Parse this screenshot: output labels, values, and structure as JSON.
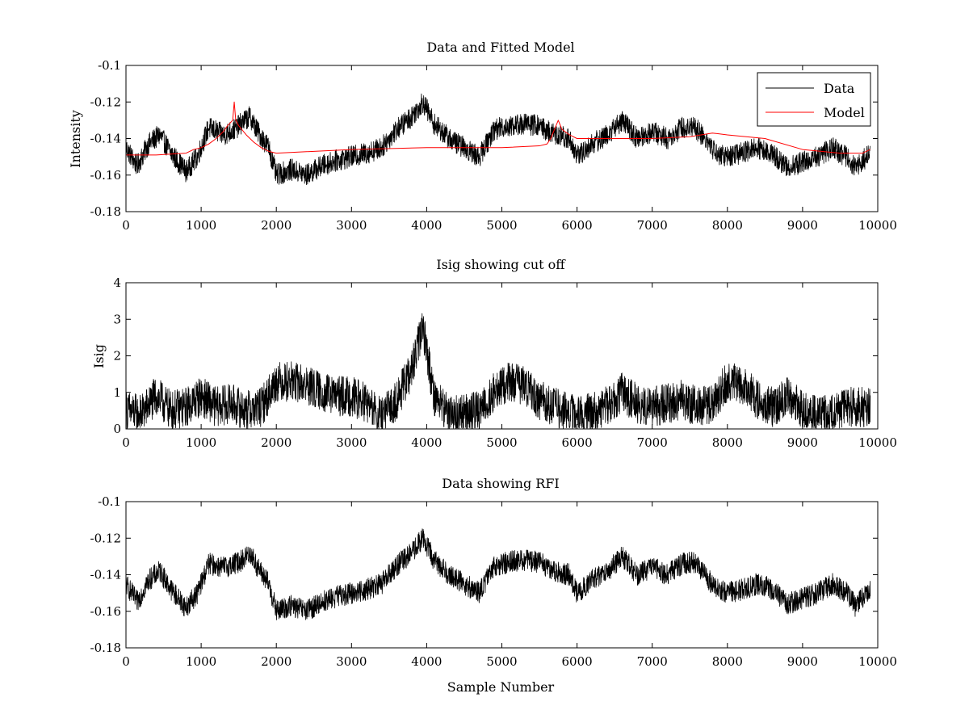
{
  "chart_data": [
    {
      "type": "line",
      "title": "Data and Fitted Model",
      "xlabel": "",
      "ylabel": "Intensity",
      "xlim": [
        0,
        10000
      ],
      "ylim": [
        -0.18,
        -0.1
      ],
      "xticks": [
        "0",
        "1000",
        "2000",
        "3000",
        "4000",
        "5000",
        "6000",
        "7000",
        "8000",
        "9000",
        "10000"
      ],
      "yticks": [
        "-0.18",
        "-0.16",
        "-0.14",
        "-0.12",
        "-0.1"
      ],
      "grid": false,
      "legend": {
        "placement": "top-right",
        "entries": [
          "Data",
          "Model"
        ]
      },
      "noise_amp": 0.006,
      "series": [
        {
          "name": "Data",
          "color": "#000000",
          "noisy": true,
          "x": [
            0,
            150,
            300,
            450,
            600,
            800,
            950,
            1100,
            1300,
            1450,
            1550,
            1650,
            1750,
            1900,
            2000,
            2200,
            2400,
            2600,
            2800,
            3000,
            3200,
            3400,
            3600,
            3800,
            3950,
            4100,
            4300,
            4500,
            4700,
            4900,
            5100,
            5300,
            5500,
            5700,
            5900,
            6000,
            6200,
            6400,
            6600,
            6800,
            7000,
            7200,
            7400,
            7550,
            7700,
            7850,
            8000,
            8200,
            8400,
            8600,
            8800,
            9000,
            9200,
            9400,
            9500,
            9600,
            9700,
            9800,
            9900
          ],
          "y": [
            -0.145,
            -0.155,
            -0.143,
            -0.138,
            -0.148,
            -0.158,
            -0.15,
            -0.134,
            -0.138,
            -0.135,
            -0.131,
            -0.128,
            -0.136,
            -0.145,
            -0.16,
            -0.157,
            -0.16,
            -0.155,
            -0.152,
            -0.15,
            -0.148,
            -0.145,
            -0.135,
            -0.128,
            -0.12,
            -0.132,
            -0.14,
            -0.145,
            -0.15,
            -0.135,
            -0.133,
            -0.132,
            -0.133,
            -0.138,
            -0.14,
            -0.15,
            -0.143,
            -0.138,
            -0.13,
            -0.14,
            -0.136,
            -0.14,
            -0.134,
            -0.133,
            -0.14,
            -0.148,
            -0.15,
            -0.148,
            -0.145,
            -0.148,
            -0.156,
            -0.153,
            -0.15,
            -0.145,
            -0.148,
            -0.15,
            -0.157,
            -0.152,
            -0.148
          ]
        },
        {
          "name": "Model",
          "color": "#ff0000",
          "noisy": false,
          "x": [
            0,
            400,
            800,
            900,
            1000,
            1100,
            1200,
            1300,
            1350,
            1420,
            1440,
            1460,
            1500,
            1600,
            1700,
            1800,
            1900,
            2000,
            3000,
            4000,
            5000,
            5500,
            5600,
            5650,
            5700,
            5750,
            5800,
            5900,
            6000,
            6500,
            7000,
            7500,
            7800,
            8000,
            8500,
            9000,
            9500,
            9800,
            9900
          ],
          "y": [
            -0.149,
            -0.149,
            -0.148,
            -0.146,
            -0.145,
            -0.143,
            -0.14,
            -0.136,
            -0.133,
            -0.13,
            -0.12,
            -0.13,
            -0.133,
            -0.138,
            -0.142,
            -0.145,
            -0.147,
            -0.148,
            -0.146,
            -0.145,
            -0.145,
            -0.144,
            -0.143,
            -0.14,
            -0.135,
            -0.13,
            -0.135,
            -0.138,
            -0.14,
            -0.14,
            -0.14,
            -0.139,
            -0.137,
            -0.138,
            -0.14,
            -0.146,
            -0.148,
            -0.148,
            -0.146
          ]
        }
      ]
    },
    {
      "type": "line",
      "title": "Isig showing cut off",
      "xlabel": "",
      "ylabel": "Isig",
      "xlim": [
        0,
        10000
      ],
      "ylim": [
        0,
        4
      ],
      "xticks": [
        "0",
        "1000",
        "2000",
        "3000",
        "4000",
        "5000",
        "6000",
        "7000",
        "8000",
        "9000",
        "10000"
      ],
      "yticks": [
        "0",
        "1",
        "2",
        "3",
        "4"
      ],
      "grid": false,
      "noise_amp": 0.55,
      "clip_min": 0,
      "series": [
        {
          "name": "Isig",
          "color": "#000000",
          "noisy": true,
          "x": [
            0,
            200,
            400,
            600,
            800,
            1000,
            1200,
            1400,
            1600,
            1800,
            2000,
            2200,
            2400,
            2600,
            2800,
            3000,
            3200,
            3400,
            3600,
            3800,
            3950,
            4100,
            4300,
            4500,
            4700,
            4900,
            5100,
            5300,
            5500,
            5700,
            5900,
            6100,
            6300,
            6600,
            6800,
            7000,
            7200,
            7400,
            7600,
            7800,
            8000,
            8200,
            8400,
            8600,
            8800,
            9000,
            9200,
            9400,
            9600,
            9800,
            9900
          ],
          "y": [
            0.5,
            0.4,
            0.9,
            0.5,
            0.6,
            0.9,
            0.6,
            0.7,
            0.5,
            0.6,
            1.3,
            1.3,
            1.2,
            1.0,
            0.9,
            0.9,
            0.7,
            0.3,
            0.8,
            1.6,
            2.8,
            0.9,
            0.4,
            0.4,
            0.5,
            1.0,
            1.3,
            1.2,
            0.8,
            0.6,
            0.4,
            0.4,
            0.5,
            1.0,
            0.7,
            0.6,
            0.7,
            0.8,
            0.6,
            0.7,
            1.3,
            1.2,
            0.8,
            0.6,
            0.9,
            0.5,
            0.4,
            0.4,
            0.6,
            0.6,
            0.6
          ]
        }
      ]
    },
    {
      "type": "line",
      "title": "Data showing RFI",
      "xlabel": "Sample Number",
      "ylabel": "",
      "xlim": [
        0,
        10000
      ],
      "ylim": [
        -0.18,
        -0.1
      ],
      "xticks": [
        "0",
        "1000",
        "2000",
        "3000",
        "4000",
        "5000",
        "6000",
        "7000",
        "8000",
        "9000",
        "10000"
      ],
      "yticks": [
        "-0.18",
        "-0.16",
        "-0.14",
        "-0.12",
        "-0.1"
      ],
      "grid": false,
      "noise_amp": 0.006,
      "series": [
        {
          "name": "Data",
          "color": "#000000",
          "noisy": true,
          "x": [
            0,
            150,
            300,
            450,
            600,
            800,
            950,
            1100,
            1300,
            1450,
            1550,
            1650,
            1750,
            1900,
            2000,
            2200,
            2400,
            2600,
            2800,
            3000,
            3200,
            3400,
            3600,
            3800,
            3950,
            4100,
            4300,
            4500,
            4700,
            4900,
            5100,
            5300,
            5500,
            5700,
            5900,
            6000,
            6200,
            6400,
            6600,
            6800,
            7000,
            7200,
            7400,
            7550,
            7700,
            7850,
            8000,
            8200,
            8400,
            8600,
            8800,
            9000,
            9200,
            9400,
            9500,
            9600,
            9700,
            9800,
            9900
          ],
          "y": [
            -0.145,
            -0.155,
            -0.143,
            -0.138,
            -0.148,
            -0.158,
            -0.15,
            -0.134,
            -0.136,
            -0.134,
            -0.132,
            -0.128,
            -0.136,
            -0.145,
            -0.16,
            -0.157,
            -0.16,
            -0.155,
            -0.152,
            -0.15,
            -0.148,
            -0.145,
            -0.135,
            -0.128,
            -0.12,
            -0.132,
            -0.14,
            -0.145,
            -0.15,
            -0.135,
            -0.133,
            -0.132,
            -0.133,
            -0.138,
            -0.14,
            -0.15,
            -0.143,
            -0.138,
            -0.13,
            -0.14,
            -0.136,
            -0.14,
            -0.134,
            -0.133,
            -0.14,
            -0.148,
            -0.15,
            -0.148,
            -0.145,
            -0.148,
            -0.156,
            -0.153,
            -0.15,
            -0.145,
            -0.148,
            -0.15,
            -0.157,
            -0.152,
            -0.148
          ]
        }
      ]
    }
  ]
}
